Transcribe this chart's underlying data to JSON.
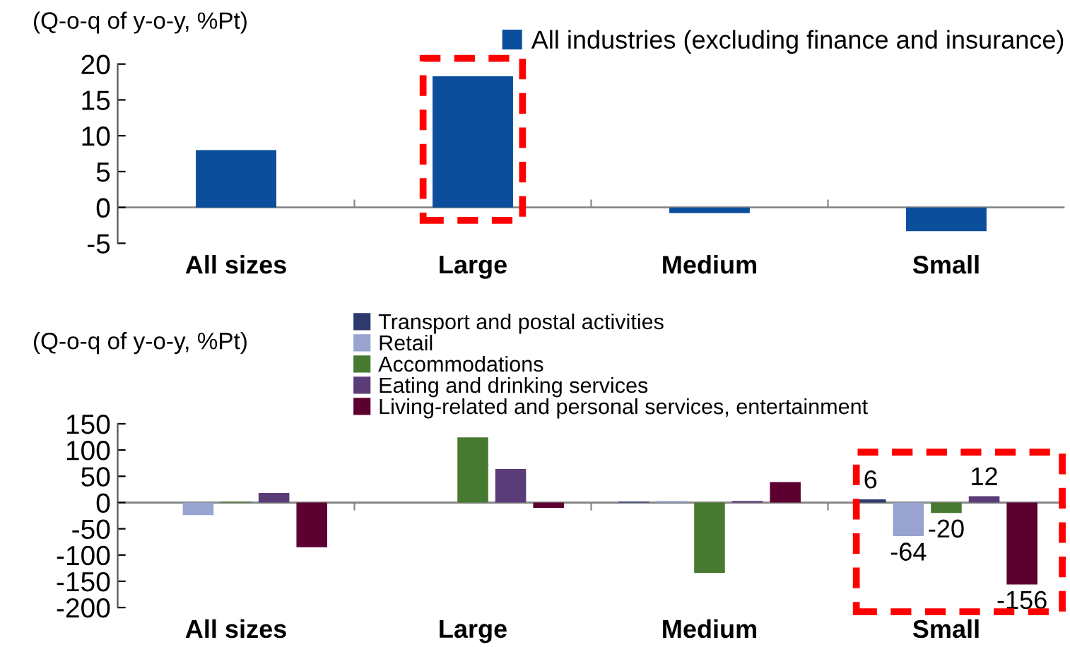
{
  "chart_data": [
    {
      "type": "bar",
      "ylabel": "(Q-o-q of y-o-y, %Pt)",
      "categories": [
        "All sizes",
        "Large",
        "Medium",
        "Small"
      ],
      "series": [
        {
          "name": "All industries (excluding finance and insurance)",
          "color": "#0b4f9c",
          "values": [
            8,
            18.3,
            -0.8,
            -3.3
          ]
        }
      ],
      "ylim": [
        -5,
        20
      ],
      "yticks": [
        -5,
        0,
        5,
        10,
        15,
        20
      ],
      "grid": false,
      "legend": "top right"
    },
    {
      "type": "bar",
      "ylabel": "(Q-o-q of y-o-y, %Pt)",
      "categories": [
        "All sizes",
        "Large",
        "Medium",
        "Small"
      ],
      "series": [
        {
          "name": "Transport and postal activities",
          "color": "#2e3a6e",
          "values": [
            0,
            0,
            2,
            6
          ],
          "value_labels": [
            null,
            null,
            null,
            "6"
          ]
        },
        {
          "name": "Retail",
          "color": "#98a3cf",
          "values": [
            -24,
            0,
            3,
            -64
          ],
          "value_labels": [
            null,
            null,
            null,
            "-64"
          ]
        },
        {
          "name": "Accommodations",
          "color": "#467a30",
          "values": [
            2,
            124,
            -134,
            -20
          ],
          "value_labels": [
            null,
            null,
            null,
            "-20"
          ]
        },
        {
          "name": "Eating and drinking services",
          "color": "#5a3c78",
          "values": [
            18,
            64,
            3,
            12
          ],
          "value_labels": [
            null,
            null,
            null,
            "12"
          ]
        },
        {
          "name": "Living-related and personal services, entertainment",
          "color": "#5c0030",
          "values": [
            -85,
            -10,
            39,
            -156
          ],
          "value_labels": [
            null,
            null,
            null,
            "-156"
          ]
        }
      ],
      "ylim": [
        -200,
        150
      ],
      "yticks": [
        -200,
        -150,
        -100,
        -50,
        0,
        50,
        100,
        150
      ],
      "grid": false,
      "legend": "top"
    }
  ]
}
